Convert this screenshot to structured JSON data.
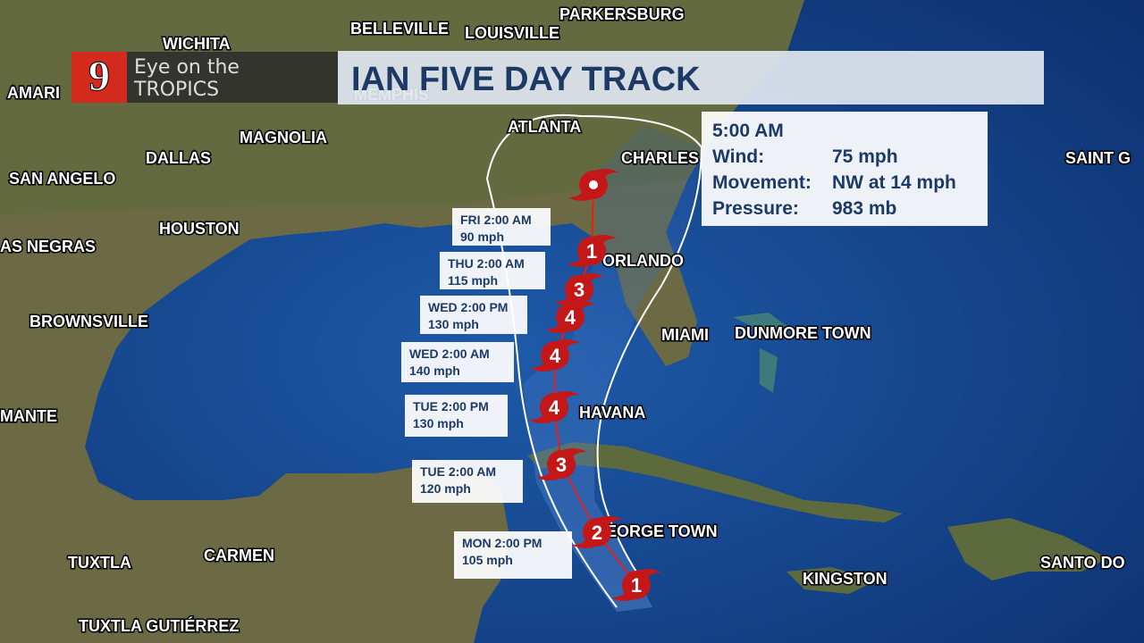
{
  "header": {
    "logo_number": "9",
    "brand_line1": "Eye on the",
    "brand_line2": "TROPICS",
    "title": "IAN FIVE DAY TRACK"
  },
  "info": {
    "time": "5:00 AM",
    "rows": [
      {
        "label": "Wind:",
        "value": "75 mph"
      },
      {
        "label": "Movement:",
        "value": "NW at 14 mph"
      },
      {
        "label": "Pressure:",
        "value": "983 mb"
      }
    ]
  },
  "forecast": [
    {
      "time": "MON 2:00 PM",
      "wind": "105 mph"
    },
    {
      "time": "TUE 2:00 AM",
      "wind": "120 mph"
    },
    {
      "time": "TUE 2:00 PM",
      "wind": "130 mph"
    },
    {
      "time": "WED 2:00 AM",
      "wind": "140 mph"
    },
    {
      "time": "WED 2:00 PM",
      "wind": "130 mph"
    },
    {
      "time": "THU 2:00 AM",
      "wind": "115 mph"
    },
    {
      "time": "FRI 2:00 AM",
      "wind": "90 mph"
    }
  ],
  "track_icons": [
    "1",
    "2",
    "3",
    "4",
    "4",
    "4",
    "3",
    "1"
  ],
  "cities": [
    "WICHITA",
    "BELLEVILLE",
    "LOUISVILLE",
    "PARKERSBURG",
    "MEMPHIS",
    "ATLANTA",
    "MAGNOLIA",
    "DALLAS",
    "CHARLES",
    "SAN ANGELO",
    "HOUSTON",
    "SAINT G",
    "AS NEGRAS",
    "ORLANDO",
    "BROWNSVILLE",
    "MIAMI",
    "DUNMORE TOWN",
    "MANTE",
    "HAVANA",
    "GEORGE TOWN",
    "TUXTLA",
    "CARMEN",
    "KINGSTON",
    "SANTO DO",
    "TUXTLA GUTIÉRREZ",
    "AMARI"
  ]
}
